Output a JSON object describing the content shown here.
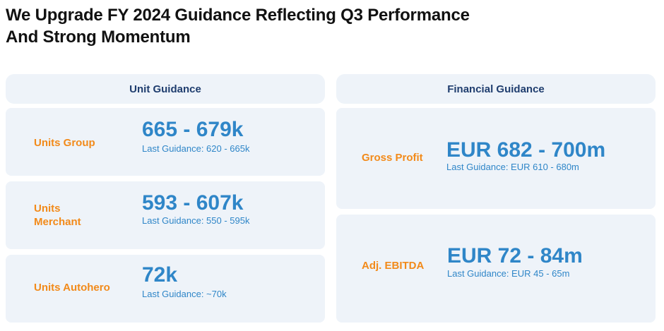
{
  "title": {
    "line1": "We Upgrade FY 2024 Guidance Reflecting Q3 Performance",
    "line2": "And Strong Momentum"
  },
  "unit_guidance": {
    "header": "Unit Guidance",
    "items": [
      {
        "label": "Units Group",
        "value": "665 - 679k",
        "last": "Last Guidance: 620 - 665k"
      },
      {
        "label_line1": "Units",
        "label_line2": "Merchant",
        "value": "593 - 607k",
        "last": "Last Guidance: 550 - 595k"
      },
      {
        "label": "Units Autohero",
        "value": "72k",
        "last": "Last Guidance: ~70k"
      }
    ]
  },
  "financial_guidance": {
    "header": "Financial Guidance",
    "items": [
      {
        "label": "Gross Profit",
        "value": "EUR 682 - 700m",
        "last": "Last Guidance: EUR 610 - 680m"
      },
      {
        "label": "Adj. EBITDA",
        "value": "EUR 72 - 84m",
        "last": "Last Guidance: EUR 45 - 65m"
      }
    ]
  },
  "colors": {
    "label": "#f28a1a",
    "value": "#2f86c8",
    "header": "#1f3d6e",
    "card_bg": "#eef3f9"
  }
}
